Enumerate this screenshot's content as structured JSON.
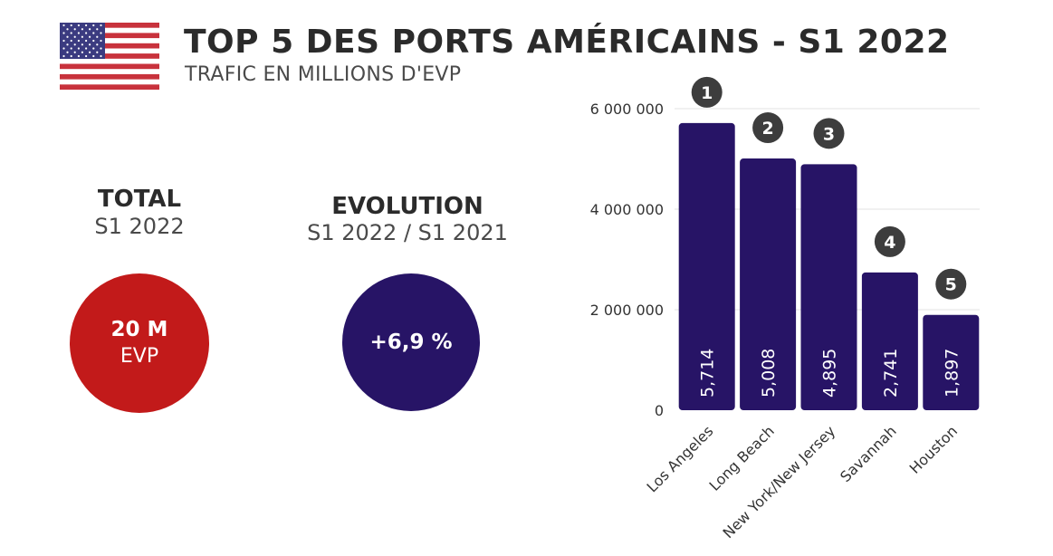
{
  "header": {
    "title": "TOP 5 DES PORTS AMÉRICAINS - S1 2022",
    "subtitle": "TRAFIC EN MILLIONS D'EVP",
    "flag_icon": "us-flag-icon"
  },
  "kpis": {
    "total": {
      "label": "TOTAL",
      "sub": "S1 2022",
      "value": "20 M",
      "unit": "EVP",
      "color": "#c21a1a"
    },
    "evolution": {
      "label": "EVOLUTION",
      "sub": "S1 2022 / S1 2021",
      "value": "+6,9 %",
      "color": "#271466"
    }
  },
  "chart_data": {
    "type": "bar",
    "categories": [
      "Los Angeles",
      "Long Beach",
      "New York/New Jersey",
      "Savannah",
      "Houston"
    ],
    "values": [
      5714000,
      5008000,
      4895000,
      2741000,
      1897000
    ],
    "data_labels": [
      "5,714",
      "5,008",
      "4,895",
      "2,741",
      "1,897"
    ],
    "ranks": [
      "1",
      "2",
      "3",
      "4",
      "5"
    ],
    "yticks": [
      0,
      2000000,
      4000000,
      6000000
    ],
    "ytick_labels": [
      "0",
      "2 000 000",
      "4 000 000",
      "6 000 000"
    ],
    "ylim": [
      0,
      6000000
    ],
    "grid": true,
    "bar_color": "#271466",
    "rank_badge_color": "#3d3d3d"
  }
}
